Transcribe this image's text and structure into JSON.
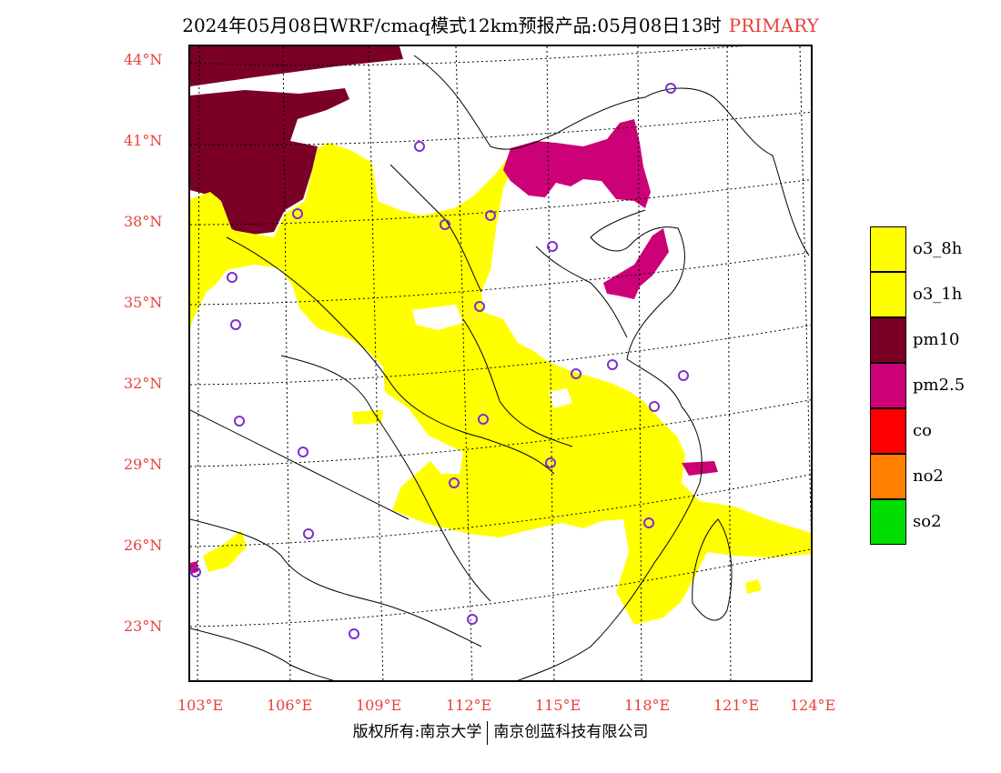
{
  "header": {
    "title": "2024年05月08日WRF/cmaq模式12km预报产品:05月08日13时",
    "primary": "PRIMARY"
  },
  "axes": {
    "lat_labels": [
      "44°N",
      "41°N",
      "38°N",
      "35°N",
      "32°N",
      "29°N",
      "26°N",
      "23°N"
    ],
    "lon_labels": [
      "103°E",
      "106°E",
      "109°E",
      "112°E",
      "115°E",
      "118°E",
      "121°E",
      "124°E"
    ]
  },
  "legend": {
    "items": [
      {
        "label": "o3_8h",
        "color": "#ffff00"
      },
      {
        "label": "o3_1h",
        "color": "#ffff00"
      },
      {
        "label": "pm10",
        "color": "#7a0026"
      },
      {
        "label": "pm2.5",
        "color": "#cc0077"
      },
      {
        "label": "co",
        "color": "#ff0000"
      },
      {
        "label": "no2",
        "color": "#ff7f00"
      },
      {
        "label": "so2",
        "color": "#00dd00"
      }
    ]
  },
  "footer": {
    "left": "版权所有:南京大学",
    "right": "南京创蓝科技有限公司"
  }
}
